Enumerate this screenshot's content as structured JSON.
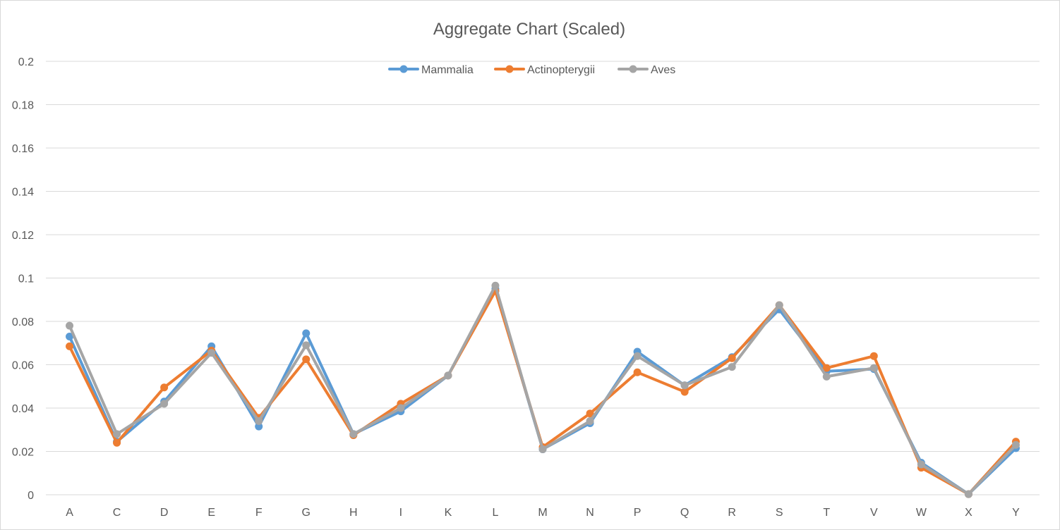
{
  "chart_data": {
    "type": "line",
    "title": "Aggregate Chart (Scaled)",
    "xlabel": "",
    "ylabel": "",
    "categories": [
      "A",
      "C",
      "D",
      "E",
      "F",
      "G",
      "H",
      "I",
      "K",
      "L",
      "M",
      "N",
      "P",
      "Q",
      "R",
      "S",
      "T",
      "V",
      "W",
      "X",
      "Y"
    ],
    "ylim": [
      0,
      0.2
    ],
    "yticks": [
      "0",
      "0.02",
      "0.04",
      "0.06",
      "0.08",
      "0.1",
      "0.12",
      "0.14",
      "0.16",
      "0.18",
      "0.2"
    ],
    "grid": true,
    "legend_position": "top-center",
    "series": [
      {
        "name": "Mammalia",
        "color": "#5B9BD5",
        "values": [
          0.073,
          0.0245,
          0.043,
          0.0685,
          0.0315,
          0.0745,
          0.028,
          0.0385,
          0.055,
          0.095,
          0.021,
          0.033,
          0.066,
          0.0505,
          0.0635,
          0.0855,
          0.057,
          0.058,
          0.0148,
          0.0003,
          0.0215
        ]
      },
      {
        "name": "Actinopterygii",
        "color": "#ED7D31",
        "values": [
          0.0685,
          0.024,
          0.0495,
          0.0665,
          0.0355,
          0.0625,
          0.0275,
          0.042,
          0.055,
          0.094,
          0.022,
          0.0375,
          0.0565,
          0.0475,
          0.063,
          0.0875,
          0.0585,
          0.064,
          0.0125,
          0.0003,
          0.0245
        ]
      },
      {
        "name": "Aves",
        "color": "#A5A5A5",
        "values": [
          0.078,
          0.028,
          0.042,
          0.0655,
          0.034,
          0.069,
          0.028,
          0.04,
          0.055,
          0.0965,
          0.021,
          0.034,
          0.064,
          0.0505,
          0.059,
          0.0875,
          0.0545,
          0.0585,
          0.014,
          0.0003,
          0.023
        ]
      }
    ]
  }
}
